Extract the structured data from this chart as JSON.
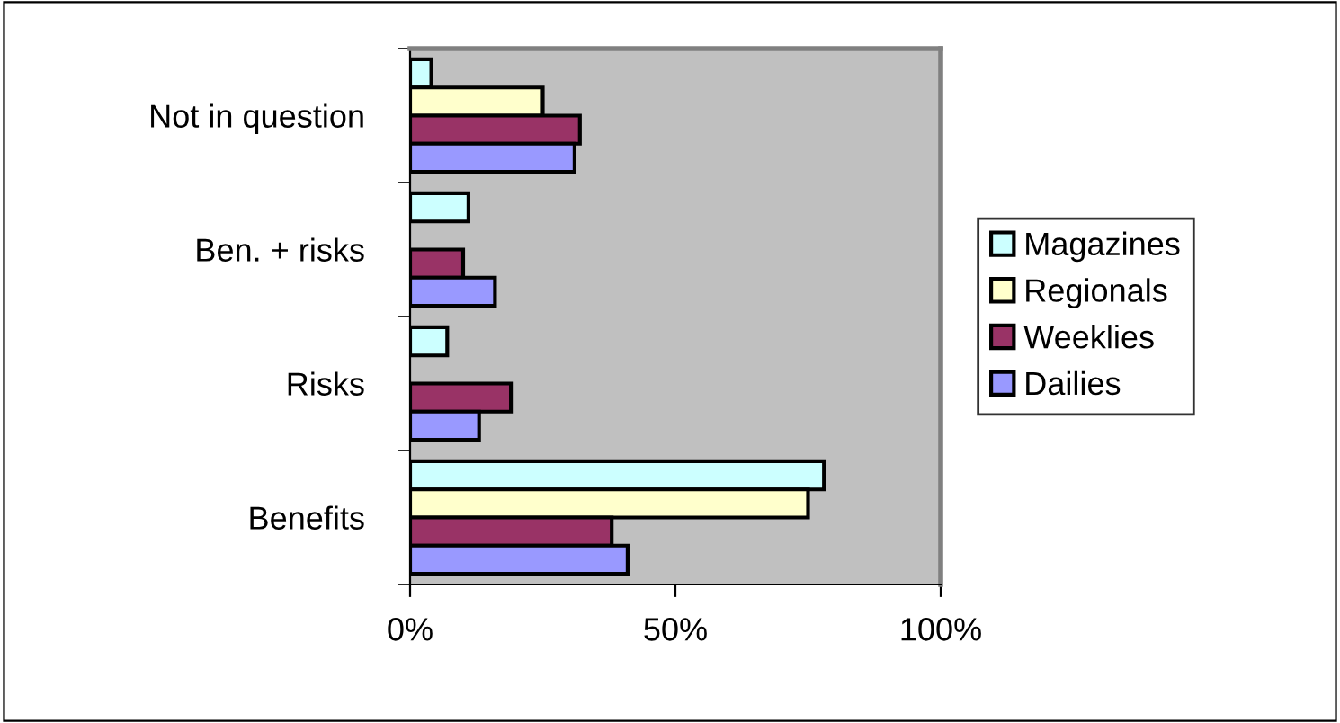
{
  "chart_data": {
    "type": "bar",
    "orientation": "horizontal",
    "categories": [
      "Not in question",
      "Ben. + risks",
      "Risks",
      "Benefits"
    ],
    "series": [
      {
        "name": "Magazines",
        "color": "#ccffff",
        "values": [
          4,
          11,
          7,
          78
        ]
      },
      {
        "name": "Regionals",
        "color": "#ffffcc",
        "values": [
          25,
          null,
          null,
          75
        ]
      },
      {
        "name": "Weeklies",
        "color": "#993366",
        "values": [
          32,
          10,
          19,
          38
        ]
      },
      {
        "name": "Dailies",
        "color": "#9999ff",
        "values": [
          31,
          16,
          13,
          41
        ]
      }
    ],
    "xlim": [
      0,
      100
    ],
    "xticks": [
      {
        "value": 0,
        "label": "0%"
      },
      {
        "value": 50,
        "label": "50%"
      },
      {
        "value": 100,
        "label": "100%"
      }
    ],
    "grid": false,
    "legend": "right"
  }
}
